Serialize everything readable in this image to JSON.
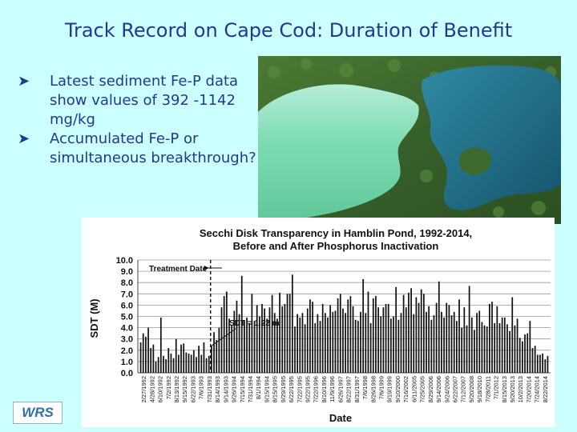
{
  "slide": {
    "title": "Track Record on Cape Cod: Duration of Benefit",
    "bullets": [
      "Latest sediment Fe-P data show values of 392 -1142 mg/kg",
      "Accumulated Fe-P or simultaneous breakthrough?"
    ],
    "bullet_icon": "arrow-bullet-icon",
    "logo_text": "WRS",
    "photo_description_icon": "aerial-pond-photo"
  },
  "colors": {
    "background": "#ccffff",
    "title": "#1f3a93",
    "bar": "#111111",
    "treated_pond": "#6ed3a3",
    "untreated_pond": "#1f6f8b",
    "land": "#3f6b2a"
  },
  "chart_data": {
    "type": "bar",
    "title": "Secchi Disk Transparency in Hamblin Pond, 1992-2014,",
    "subtitle": "Before and After Phosphorus Inactivation",
    "xlabel": "Date",
    "ylabel": "SDT (M)",
    "ylim": [
      0,
      10
    ],
    "yticks": [
      "0.0",
      "1.0",
      "2.0",
      "3.0",
      "4.0",
      "5.0",
      "6.0",
      "7.0",
      "8.0",
      "9.0",
      "10.0"
    ],
    "grid": true,
    "annotations": {
      "treatment_label": "Treatment Date",
      "treatment_index": 27,
      "sdt_label": "SDT = 1.22 m"
    },
    "tick_labels": [
      "2/27/1992",
      "4/28/1992",
      "6/10/1992",
      "7/2/1992",
      "8/13/1992",
      "9/15/1992",
      "6/22/1993",
      "7/6/1993",
      "7/31/1993",
      "8/14/1993",
      "9/14/1993",
      "9/26/1994",
      "7/15/1994",
      "7/31/1994",
      "8/1/1994",
      "9/15/1994",
      "8/15/1995",
      "9/29/1995",
      "6/22/1995",
      "7/22/1995",
      "9/22/1995",
      "7/22/1996",
      "8/10/1996",
      "11/9/1996",
      "6/26/1997",
      "8/22/1997",
      "8/31/1997",
      "7/6/1998",
      "8/26/1998",
      "7/6/1999",
      "9/19/1999",
      "9/10/2000",
      "7/16/2002",
      "6/11/2005",
      "7/25/2005",
      "8/29/2006",
      "9/14/2006",
      "9/24/2006",
      "6/22/2007",
      "7/12/2007",
      "9/20/2008",
      "9/18/2010",
      "7/28/2011",
      "7/1/2012",
      "8/15/2013",
      "9/20/2013",
      "10/2/2013",
      "7/20/2014",
      "7/24/2014",
      "8/22/2014"
    ],
    "values": [
      2.7,
      3.5,
      3.2,
      4.0,
      2.2,
      2.5,
      1.0,
      1.4,
      4.9,
      1.5,
      1.2,
      2.2,
      1.7,
      1.3,
      3.0,
      1.6,
      2.5,
      2.6,
      1.8,
      1.7,
      1.6,
      2.0,
      1.4,
      2.4,
      1.6,
      2.7,
      1.3,
      1.5,
      2.4,
      3.6,
      2.9,
      4.0,
      5.8,
      6.8,
      7.2,
      4.8,
      4.2,
      5.5,
      6.4,
      5.2,
      8.6,
      4.6,
      4.9,
      4.4,
      7.0,
      4.6,
      6.0,
      5.0,
      6.1,
      5.7,
      4.8,
      5.8,
      6.9,
      5.3,
      4.8,
      7.1,
      5.9,
      6.1,
      7.0,
      7.0,
      8.7,
      4.1,
      5.2,
      4.9,
      5.3,
      4.3,
      5.7,
      6.5,
      6.3,
      4.4,
      5.2,
      4.6,
      6.1,
      5.3,
      4.9,
      6.0,
      5.4,
      5.5,
      6.6,
      7.0,
      5.7,
      5.3,
      6.5,
      6.8,
      5.9,
      4.7,
      4.6,
      5.4,
      8.3,
      5.3,
      7.2,
      4.4,
      6.6,
      6.8,
      5.8,
      5.0,
      5.8,
      6.1,
      6.1,
      4.8,
      5.0,
      7.6,
      4.7,
      5.3,
      6.9,
      5.8,
      7.1,
      7.5,
      5.2,
      6.7,
      6.2,
      7.4,
      7.0,
      5.4,
      5.9,
      4.7,
      5.1,
      6.2,
      8.1,
      5.4,
      4.9,
      6.2,
      6.0,
      5.1,
      5.4,
      4.6,
      6.5,
      4.0,
      5.8,
      4.2,
      7.7,
      4.9,
      3.8,
      5.3,
      5.5,
      4.5,
      4.2,
      4.1,
      6.1,
      6.3,
      4.4,
      5.9,
      4.4,
      4.9,
      4.9,
      4.3,
      3.7,
      6.7,
      4.2,
      4.8,
      3.1,
      2.8,
      3.4,
      3.5,
      4.6,
      2.2,
      2.4,
      1.6,
      1.6,
      1.7,
      1.2,
      1.5
    ]
  }
}
